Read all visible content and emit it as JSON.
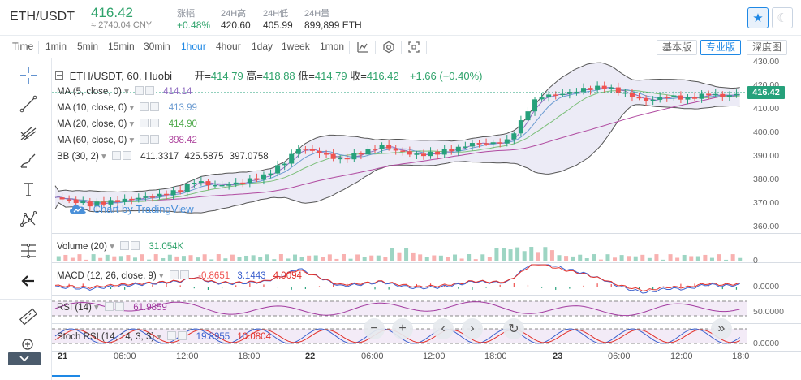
{
  "header": {
    "pair": "ETH/USDT",
    "price": "416.42",
    "cny": "≈ 2740.04 CNY",
    "change_label": "涨幅",
    "change_value": "+0.48%",
    "high_label": "24H高",
    "high_value": "420.60",
    "low_label": "24H低",
    "low_value": "405.99",
    "vol_label": "24H量",
    "vol_value": "899,899 ETH",
    "star_icon": "star-icon",
    "theme_icon": "moon-icon"
  },
  "toolbar": {
    "intervals": [
      "Time",
      "1min",
      "5min",
      "15min",
      "30min",
      "1hour",
      "4hour",
      "1day",
      "1week",
      "1mon"
    ],
    "active_interval": "1hour",
    "views": [
      "基本版",
      "专业版",
      "深度图"
    ],
    "active_view": "专业版"
  },
  "legend": {
    "title": "ETH/USDT, 60, Huobi",
    "open_label": "开=",
    "open": "414.79",
    "high_label": "高=",
    "high": "418.88",
    "low_label": "低=",
    "low": "414.79",
    "close_label": "收=",
    "close": "416.42",
    "change": "+1.66 (+0.40%)",
    "ma5_label": "MA (5, close, 0)",
    "ma5": "414.14",
    "ma10_label": "MA (10, close, 0)",
    "ma10": "413.99",
    "ma20_label": "MA (20, close, 0)",
    "ma20": "414.90",
    "ma60_label": "MA (60, close, 0)",
    "ma60": "398.42",
    "bb_label": "BB (30, 2)",
    "bb1": "411.3317",
    "bb2": "425.5875",
    "bb3": "397.0758",
    "watermark": "Chart by TradingView",
    "volume_label": "Volume (20)",
    "volume": "31.054K",
    "macd_label": "MACD (12, 26, close, 9)",
    "macd1": "-0.8651",
    "macd2": "3.1443",
    "macd3": "4.0094",
    "rsi_label": "RSI (14)",
    "rsi": "61.9859",
    "stoch_label": "Stoch RSI (14, 14, 3, 3)",
    "stoch1": "19.8955",
    "stoch2": "10.0804"
  },
  "axis": {
    "price_ticks": [
      "430.00",
      "420.00",
      "410.00",
      "400.00",
      "390.00",
      "380.00",
      "370.00",
      "360.00"
    ],
    "last_price": "416.42",
    "volume_tick": "0",
    "macd_tick": "0.0000",
    "rsi_tick": "50.0000",
    "stoch_tick": "0.0000",
    "time_labels": [
      "21",
      "06:00",
      "12:00",
      "18:00",
      "22",
      "06:00",
      "12:00",
      "18:00",
      "23",
      "06:00",
      "12:00",
      "18:0"
    ]
  },
  "colors": {
    "up": "#2fa36b",
    "down": "#ef5350",
    "ma5": "#8e6bbf",
    "ma10": "#6b9bd1",
    "ma20": "#7cbf7a",
    "ma60": "#b04aa0",
    "accent": "#1e88e5"
  }
}
